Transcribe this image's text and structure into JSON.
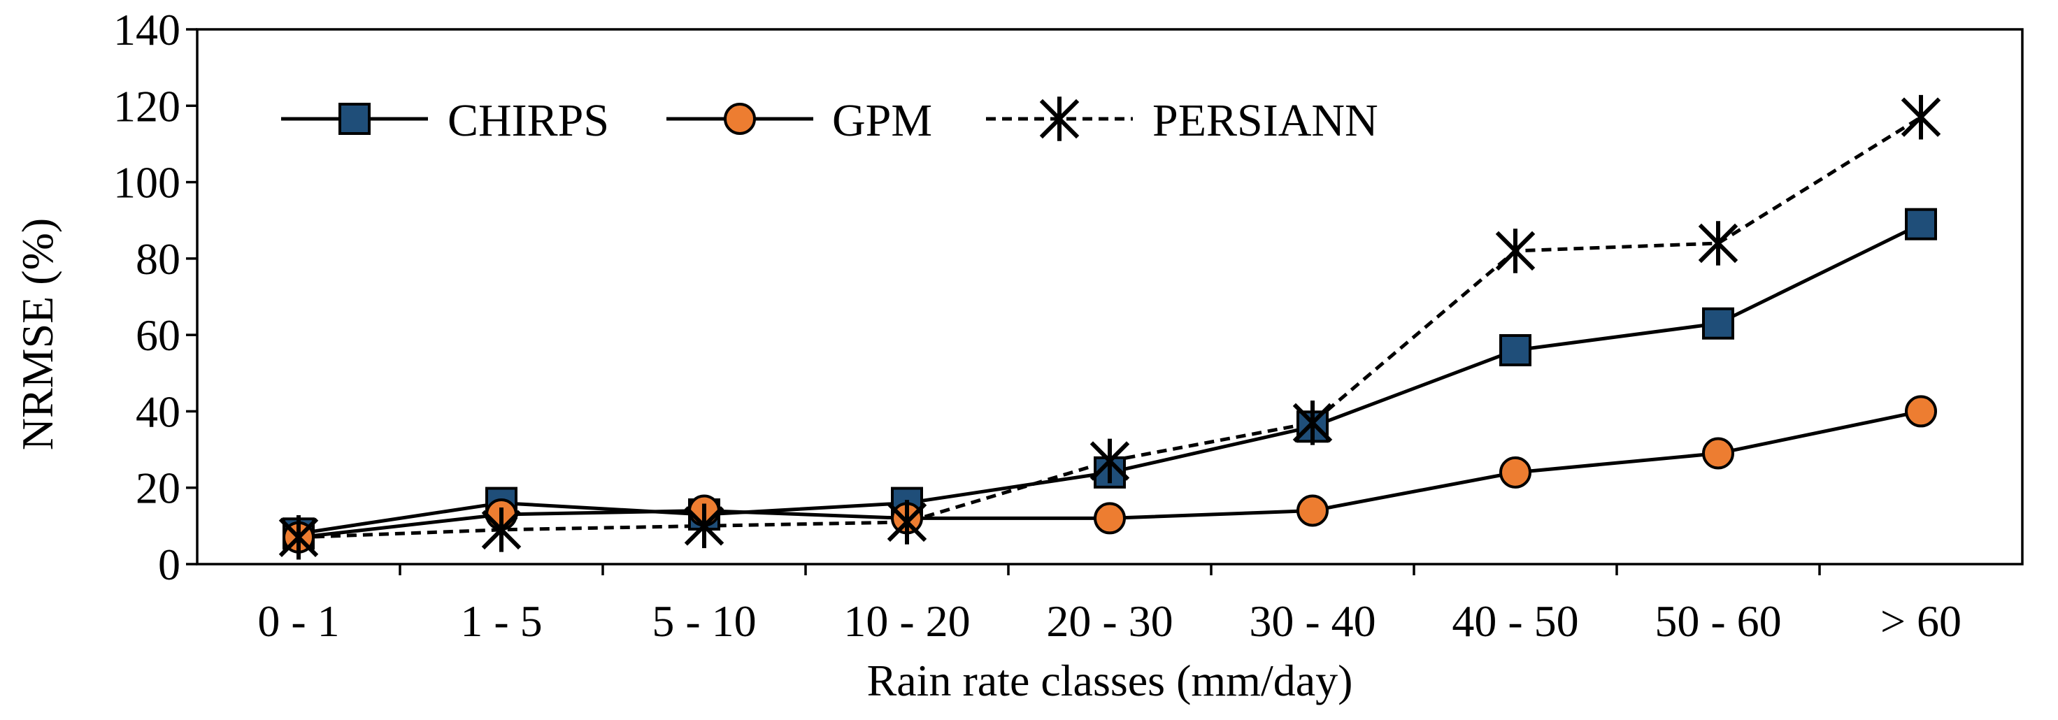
{
  "chart_data": {
    "type": "line",
    "categories": [
      "0 - 1",
      "1 - 5",
      "5 - 10",
      "10 - 20",
      "20 - 30",
      "30 - 40",
      "40 - 50",
      "50 - 60",
      "> 60"
    ],
    "xlabel": "Rain rate classes (mm/day)",
    "ylabel": "NRMSE (%)",
    "ylim": [
      0,
      140
    ],
    "yticks": [
      "0",
      "20",
      "40",
      "60",
      "80",
      "100",
      "120",
      "140"
    ],
    "legend_position": "top-left",
    "grid": false,
    "series": [
      {
        "name": "CHIRPS",
        "marker": "square",
        "line": "solid",
        "fill": "#1f4e79",
        "values": [
          8,
          16,
          13,
          16,
          24,
          36,
          56,
          63,
          89
        ]
      },
      {
        "name": "GPM",
        "marker": "circle",
        "line": "solid",
        "fill": "#ed7d31",
        "values": [
          7,
          13,
          14,
          12,
          12,
          14,
          24,
          29,
          40
        ]
      },
      {
        "name": "PERSIANN",
        "marker": "star",
        "line": "dashed",
        "fill": "#000000",
        "values": [
          7,
          9,
          10,
          11,
          27,
          37,
          82,
          84,
          117
        ]
      }
    ]
  }
}
